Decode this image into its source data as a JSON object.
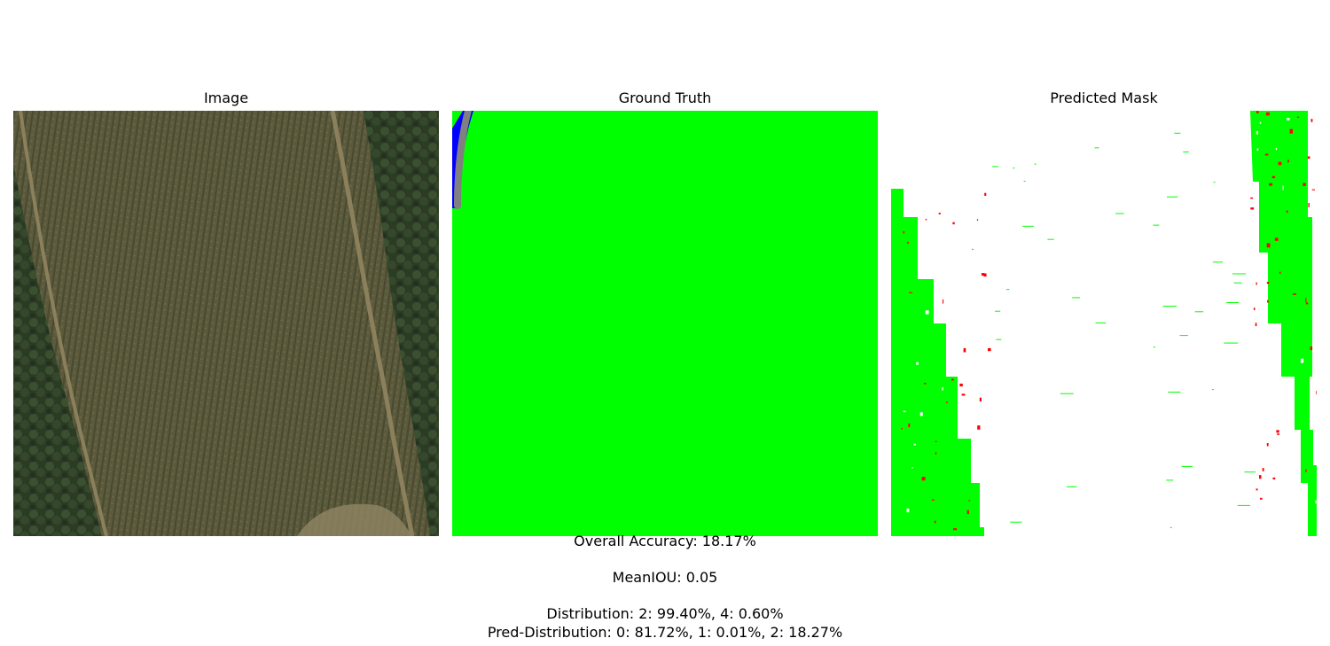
{
  "panels": [
    {
      "title": "Image"
    },
    {
      "title": "Ground Truth"
    },
    {
      "title": "Predicted Mask"
    }
  ],
  "colors": {
    "mask_green": "#00ff00",
    "mask_gray": "#808080",
    "mask_blue": "#0000ff",
    "mask_red": "#ff0000",
    "background": "#ffffff",
    "field_olive": "#5a5a3c",
    "forest_dark": "#2e3d24",
    "track_tan": "#8a7e5a"
  },
  "metrics": {
    "accuracy": "Overall Accuracy: 18.17%",
    "miou": "MeanIOU: 0.05",
    "distribution": "Distribution: 2: 99.40%, 4: 0.60%",
    "pred_distribution": "Pred-Distribution: 0: 81.72%, 1: 0.01%, 2: 18.27%"
  }
}
